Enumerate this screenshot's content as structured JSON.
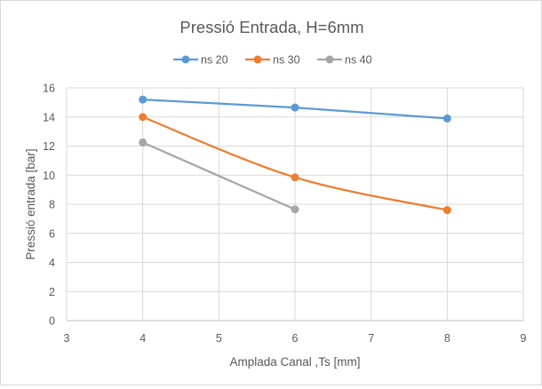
{
  "chart_data": {
    "type": "line",
    "title": "Pressió Entrada, H=6mm",
    "xlabel": "Amplada Canal ,Ts [mm]",
    "ylabel": "Pressió entrada [bar]",
    "xlim": [
      3,
      9
    ],
    "ylim": [
      0,
      16
    ],
    "xticks": [
      3,
      4,
      5,
      6,
      7,
      8,
      9
    ],
    "yticks": [
      0,
      2,
      4,
      6,
      8,
      10,
      12,
      14,
      16
    ],
    "grid": true,
    "legend_position": "top",
    "series": [
      {
        "name": "ns 20",
        "color": "#5b9bd5",
        "smooth": false,
        "x": [
          4,
          6,
          8
        ],
        "y": [
          15.2,
          14.65,
          13.9
        ]
      },
      {
        "name": "ns 30",
        "color": "#ed7d31",
        "smooth": true,
        "x": [
          4,
          6,
          8
        ],
        "y": [
          14.0,
          9.85,
          7.6
        ]
      },
      {
        "name": "ns 40",
        "color": "#a5a5a5",
        "smooth": false,
        "x": [
          4,
          6
        ],
        "y": [
          12.25,
          7.65
        ]
      }
    ]
  }
}
